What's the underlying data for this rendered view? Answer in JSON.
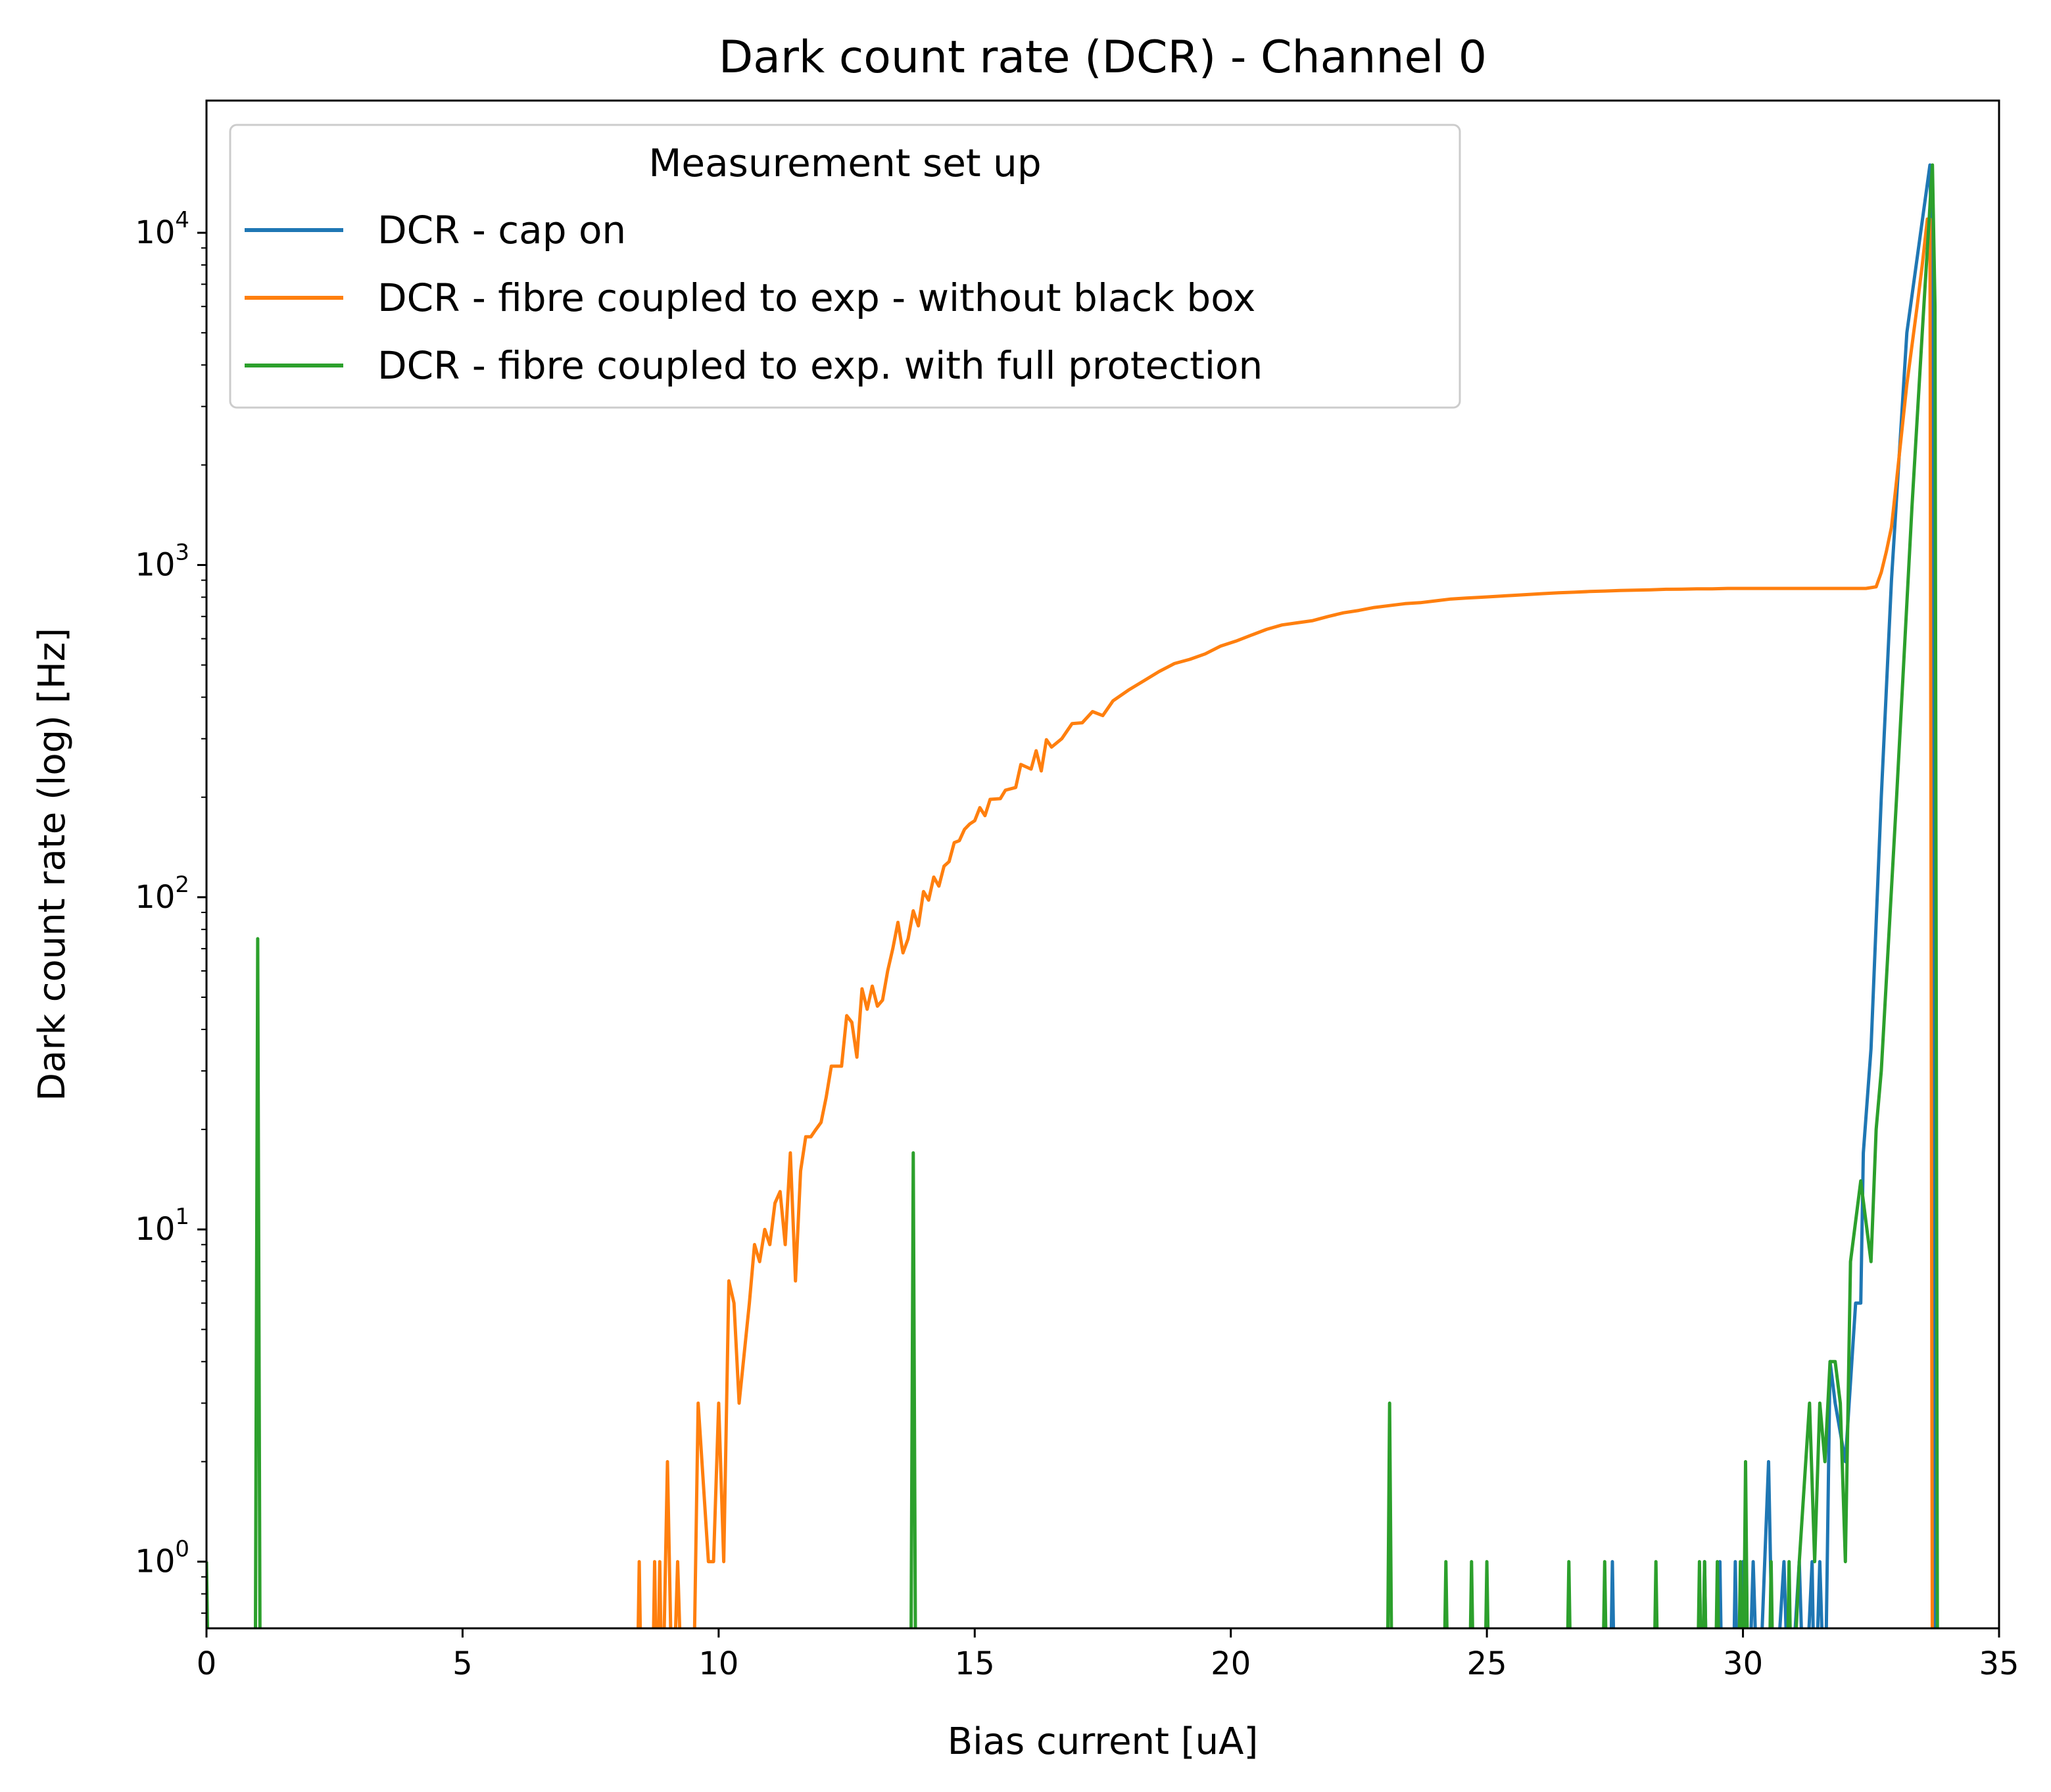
{
  "chart_data": {
    "type": "line",
    "title": "Dark count rate (DCR) - Channel 0",
    "xlabel": "Bias current [uA]",
    "ylabel": "Dark count rate (log) [Hz]",
    "xlim": [
      0,
      35
    ],
    "ylim": [
      0.63,
      25000
    ],
    "yscale": "log",
    "grid": false,
    "x_ticks": [
      "0",
      "5",
      "10",
      "15",
      "20",
      "25",
      "30",
      "35"
    ],
    "y_ticks": [
      {
        "base": "10",
        "exp": "0",
        "value": 1
      },
      {
        "base": "10",
        "exp": "1",
        "value": 10
      },
      {
        "base": "10",
        "exp": "2",
        "value": 100
      },
      {
        "base": "10",
        "exp": "3",
        "value": 1000
      },
      {
        "base": "10",
        "exp": "4",
        "value": 10000
      }
    ],
    "legend": {
      "title": "Measurement set up",
      "placement": "upper-left"
    },
    "series": [
      {
        "name": "DCR - cap on",
        "color": "#1f77b4",
        "points": [
          [
            0,
            0
          ],
          [
            27.4,
            0
          ],
          [
            27.45,
            1
          ],
          [
            27.5,
            0
          ],
          [
            29.2,
            0
          ],
          [
            29.25,
            1
          ],
          [
            29.3,
            0
          ],
          [
            29.5,
            0
          ],
          [
            29.55,
            1
          ],
          [
            29.6,
            0
          ],
          [
            29.8,
            0
          ],
          [
            29.85,
            1
          ],
          [
            29.9,
            0
          ],
          [
            30.0,
            1
          ],
          [
            30.1,
            0
          ],
          [
            30.2,
            1
          ],
          [
            30.3,
            0
          ],
          [
            30.5,
            2
          ],
          [
            30.6,
            0
          ],
          [
            30.8,
            1
          ],
          [
            30.9,
            0
          ],
          [
            31.1,
            1
          ],
          [
            31.2,
            0
          ],
          [
            31.35,
            1
          ],
          [
            31.4,
            0
          ],
          [
            31.5,
            1
          ],
          [
            31.6,
            0
          ],
          [
            31.7,
            4
          ],
          [
            31.8,
            3
          ],
          [
            32.0,
            2
          ],
          [
            32.2,
            6
          ],
          [
            32.3,
            6
          ],
          [
            32.35,
            17
          ],
          [
            32.5,
            35
          ],
          [
            32.7,
            200
          ],
          [
            32.9,
            900
          ],
          [
            33.2,
            5000
          ],
          [
            33.65,
            16000
          ],
          [
            33.7,
            6000
          ],
          [
            33.75,
            0
          ],
          [
            35,
            0
          ]
        ]
      },
      {
        "name": "DCR - fibre coupled to exp - without black box",
        "color": "#ff7f0e",
        "points": [
          [
            0,
            0
          ],
          [
            8.4,
            0
          ],
          [
            8.45,
            1
          ],
          [
            8.5,
            0
          ],
          [
            8.7,
            0
          ],
          [
            8.75,
            1
          ],
          [
            8.8,
            0
          ],
          [
            8.85,
            1
          ],
          [
            8.9,
            0
          ],
          [
            9.0,
            2
          ],
          [
            9.1,
            0
          ],
          [
            9.2,
            1
          ],
          [
            9.3,
            0
          ],
          [
            9.5,
            0
          ],
          [
            9.6,
            3
          ],
          [
            9.8,
            1
          ],
          [
            9.9,
            1
          ],
          [
            10.0,
            3
          ],
          [
            10.1,
            1
          ],
          [
            10.2,
            7
          ],
          [
            10.3,
            6
          ],
          [
            10.4,
            3
          ],
          [
            10.6,
            6
          ],
          [
            10.7,
            9
          ],
          [
            10.8,
            8
          ],
          [
            10.9,
            10
          ],
          [
            11.0,
            9
          ],
          [
            11.1,
            12
          ],
          [
            11.2,
            13
          ],
          [
            11.3,
            9
          ],
          [
            11.4,
            17
          ],
          [
            11.5,
            7
          ],
          [
            11.6,
            15
          ],
          [
            11.7,
            19
          ],
          [
            11.8,
            19
          ],
          [
            11.9,
            20
          ],
          [
            12.0,
            21
          ],
          [
            12.1,
            25
          ],
          [
            12.2,
            31
          ],
          [
            12.4,
            31
          ],
          [
            12.5,
            44
          ],
          [
            12.6,
            42
          ],
          [
            12.7,
            33
          ],
          [
            12.8,
            53
          ],
          [
            12.9,
            46
          ],
          [
            13.0,
            54
          ],
          [
            13.1,
            47
          ],
          [
            13.2,
            49
          ],
          [
            13.3,
            60
          ],
          [
            13.4,
            70
          ],
          [
            13.5,
            84
          ],
          [
            13.6,
            68
          ],
          [
            13.7,
            75
          ],
          [
            13.8,
            91
          ],
          [
            13.9,
            82
          ],
          [
            14.0,
            104
          ],
          [
            14.1,
            98
          ],
          [
            14.2,
            115
          ],
          [
            14.3,
            108
          ],
          [
            14.4,
            124
          ],
          [
            14.5,
            128
          ],
          [
            14.6,
            146
          ],
          [
            14.7,
            148
          ],
          [
            14.8,
            160
          ],
          [
            14.9,
            166
          ],
          [
            15.0,
            170
          ],
          [
            15.1,
            186
          ],
          [
            15.2,
            176
          ],
          [
            15.3,
            197
          ],
          [
            15.5,
            198
          ],
          [
            15.6,
            210
          ],
          [
            15.8,
            214
          ],
          [
            15.9,
            251
          ],
          [
            16.1,
            243
          ],
          [
            16.2,
            276
          ],
          [
            16.3,
            240
          ],
          [
            16.4,
            298
          ],
          [
            16.5,
            283
          ],
          [
            16.7,
            300
          ],
          [
            16.9,
            333
          ],
          [
            17.1,
            335
          ],
          [
            17.3,
            362
          ],
          [
            17.5,
            352
          ],
          [
            17.7,
            390
          ],
          [
            18.0,
            420
          ],
          [
            18.3,
            448
          ],
          [
            18.6,
            478
          ],
          [
            18.9,
            505
          ],
          [
            19.2,
            520
          ],
          [
            19.5,
            540
          ],
          [
            19.8,
            570
          ],
          [
            20.1,
            590
          ],
          [
            20.4,
            615
          ],
          [
            20.7,
            640
          ],
          [
            21.0,
            660
          ],
          [
            21.3,
            670
          ],
          [
            21.6,
            680
          ],
          [
            21.9,
            700
          ],
          [
            22.2,
            718
          ],
          [
            22.5,
            730
          ],
          [
            22.8,
            745
          ],
          [
            23.1,
            755
          ],
          [
            23.4,
            765
          ],
          [
            23.7,
            770
          ],
          [
            24.0,
            780
          ],
          [
            24.3,
            790
          ],
          [
            24.6,
            795
          ],
          [
            24.9,
            800
          ],
          [
            25.2,
            805
          ],
          [
            25.5,
            810
          ],
          [
            25.8,
            815
          ],
          [
            26.1,
            820
          ],
          [
            26.4,
            825
          ],
          [
            26.7,
            828
          ],
          [
            27.0,
            832
          ],
          [
            27.3,
            835
          ],
          [
            27.6,
            838
          ],
          [
            27.9,
            840
          ],
          [
            28.2,
            842
          ],
          [
            28.5,
            845
          ],
          [
            28.8,
            846
          ],
          [
            29.1,
            848
          ],
          [
            29.4,
            848
          ],
          [
            29.7,
            850
          ],
          [
            30.0,
            850
          ],
          [
            30.3,
            850
          ],
          [
            30.6,
            850
          ],
          [
            30.9,
            850
          ],
          [
            31.2,
            850
          ],
          [
            31.5,
            850
          ],
          [
            31.8,
            850
          ],
          [
            32.1,
            850
          ],
          [
            32.4,
            850
          ],
          [
            32.6,
            860
          ],
          [
            32.7,
            950
          ],
          [
            32.8,
            1100
          ],
          [
            32.9,
            1300
          ],
          [
            33.0,
            1800
          ],
          [
            33.2,
            3500
          ],
          [
            33.4,
            6000
          ],
          [
            33.5,
            8000
          ],
          [
            33.6,
            11000
          ],
          [
            33.65,
            11000
          ],
          [
            33.7,
            0
          ],
          [
            35,
            0
          ]
        ]
      },
      {
        "name": "DCR - fibre coupled to exp. with full protection",
        "color": "#2ca02c",
        "points": [
          [
            0,
            1
          ],
          [
            0.05,
            0
          ],
          [
            0.95,
            0
          ],
          [
            1.0,
            75
          ],
          [
            1.05,
            0
          ],
          [
            13.75,
            0
          ],
          [
            13.8,
            17
          ],
          [
            13.85,
            0
          ],
          [
            23.05,
            0
          ],
          [
            23.1,
            3
          ],
          [
            23.15,
            0
          ],
          [
            24.15,
            0
          ],
          [
            24.2,
            1
          ],
          [
            24.25,
            0
          ],
          [
            24.65,
            0
          ],
          [
            24.7,
            1
          ],
          [
            24.75,
            0
          ],
          [
            24.95,
            0
          ],
          [
            25.0,
            1
          ],
          [
            25.05,
            0
          ],
          [
            26.55,
            0
          ],
          [
            26.6,
            1
          ],
          [
            26.65,
            0
          ],
          [
            27.25,
            0
          ],
          [
            27.3,
            1
          ],
          [
            27.35,
            0
          ],
          [
            28.25,
            0
          ],
          [
            28.3,
            1
          ],
          [
            28.35,
            0
          ],
          [
            29.1,
            0
          ],
          [
            29.15,
            1
          ],
          [
            29.2,
            0
          ],
          [
            29.25,
            1
          ],
          [
            29.3,
            0
          ],
          [
            29.45,
            0
          ],
          [
            29.5,
            1
          ],
          [
            29.55,
            0
          ],
          [
            29.9,
            0
          ],
          [
            29.95,
            1
          ],
          [
            30.0,
            0
          ],
          [
            30.05,
            2
          ],
          [
            30.1,
            0
          ],
          [
            30.5,
            0
          ],
          [
            30.55,
            1
          ],
          [
            30.6,
            0
          ],
          [
            30.85,
            0
          ],
          [
            30.9,
            1
          ],
          [
            30.95,
            0
          ],
          [
            31.1,
            1
          ],
          [
            31.3,
            3
          ],
          [
            31.4,
            1
          ],
          [
            31.5,
            3
          ],
          [
            31.6,
            2
          ],
          [
            31.7,
            4
          ],
          [
            31.8,
            4
          ],
          [
            31.9,
            3
          ],
          [
            32.0,
            1
          ],
          [
            32.1,
            8
          ],
          [
            32.3,
            14
          ],
          [
            32.5,
            8
          ],
          [
            32.6,
            20
          ],
          [
            32.7,
            30
          ],
          [
            33.0,
            200
          ],
          [
            33.3,
            1500
          ],
          [
            33.5,
            5000
          ],
          [
            33.7,
            16000
          ],
          [
            33.75,
            6000
          ],
          [
            33.8,
            0
          ],
          [
            35,
            0
          ]
        ]
      }
    ]
  }
}
